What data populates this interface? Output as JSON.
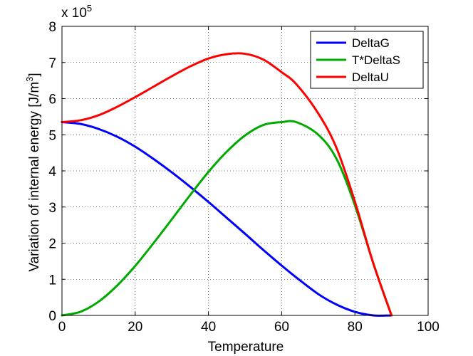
{
  "chart_data": {
    "type": "line",
    "title": "",
    "xlabel": "Temperature",
    "ylabel": "Variation of internal energy [J/m",
    "ylabel_superscript": "3",
    "ylabel_suffix": "]",
    "y_multiplier_prefix": "x 10",
    "y_multiplier_exponent": "5",
    "xlim": [
      0,
      100
    ],
    "ylim": [
      0,
      8
    ],
    "xticks": [
      0,
      20,
      40,
      60,
      80,
      100
    ],
    "yticks": [
      0,
      1,
      2,
      3,
      4,
      5,
      6,
      7,
      8
    ],
    "xtick_labels": [
      "0",
      "20",
      "40",
      "60",
      "80",
      "100"
    ],
    "ytick_labels": [
      "0",
      "1",
      "2",
      "3",
      "4",
      "5",
      "6",
      "7",
      "8"
    ],
    "grid": true,
    "legend_position": "top-right",
    "x": [
      0,
      5,
      10,
      15,
      20,
      25,
      30,
      35,
      40,
      45,
      50,
      55,
      60,
      64,
      70,
      75,
      80,
      85,
      90
    ],
    "series": [
      {
        "name": "DeltaG",
        "color": "#0000ff",
        "values": [
          5.35,
          5.3,
          5.16,
          4.95,
          4.67,
          4.33,
          3.96,
          3.56,
          3.14,
          2.7,
          2.26,
          1.81,
          1.38,
          1.05,
          0.59,
          0.3,
          0.1,
          0.0,
          0.0
        ]
      },
      {
        "name": "T*DeltaS",
        "color": "#00aa00",
        "values": [
          0.0,
          0.1,
          0.38,
          0.82,
          1.37,
          2.0,
          2.66,
          3.33,
          3.97,
          4.53,
          4.98,
          5.27,
          5.35,
          5.35,
          5.0,
          4.33,
          3.05,
          1.45,
          0.0
        ]
      },
      {
        "name": "DeltaU",
        "color": "#ff0000",
        "values": [
          5.35,
          5.4,
          5.54,
          5.77,
          6.04,
          6.33,
          6.62,
          6.89,
          7.11,
          7.23,
          7.24,
          7.08,
          6.73,
          6.4,
          5.59,
          4.63,
          3.15,
          1.45,
          0.0
        ]
      }
    ]
  }
}
